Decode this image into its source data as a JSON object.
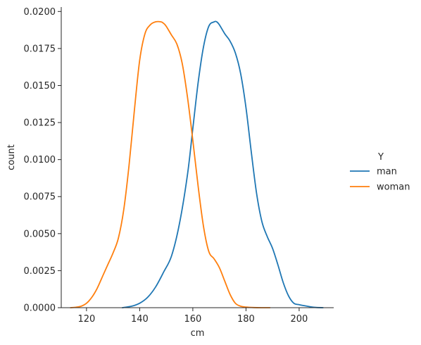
{
  "chart_data": {
    "type": "line",
    "title": "",
    "xlabel": "cm",
    "ylabel": "count",
    "xlim": [
      110.5,
      213
    ],
    "ylim": [
      0,
      0.0203
    ],
    "x_ticks": [
      120,
      140,
      160,
      180,
      200
    ],
    "x_tick_labels": [
      "120",
      "140",
      "160",
      "180",
      "200"
    ],
    "y_ticks": [
      0.0,
      0.0025,
      0.005,
      0.0075,
      0.01,
      0.0125,
      0.015,
      0.0175,
      0.02
    ],
    "y_tick_labels": [
      "0.0000",
      "0.0025",
      "0.0050",
      "0.0075",
      "0.0100",
      "0.0125",
      "0.0150",
      "0.0175",
      "0.0200"
    ],
    "grid": false,
    "legend": {
      "title": "Y",
      "placement": "outside-right"
    },
    "series": [
      {
        "name": "man",
        "color": "#1f77b4",
        "x": [
          133.5,
          137,
          140,
          143,
          146,
          149,
          152,
          155,
          158,
          160,
          162,
          164,
          166,
          168,
          169,
          170,
          172,
          174,
          176,
          178,
          180,
          182,
          184,
          186,
          188,
          190,
          192,
          194,
          196,
          198,
          200,
          203,
          206,
          209
        ],
        "y": [
          0.0,
          0.0001,
          0.0003,
          0.0007,
          0.0014,
          0.0024,
          0.0035,
          0.0057,
          0.009,
          0.0121,
          0.0152,
          0.0176,
          0.019,
          0.0193,
          0.0193,
          0.0191,
          0.0185,
          0.018,
          0.0172,
          0.0158,
          0.0135,
          0.0105,
          0.0077,
          0.0058,
          0.0048,
          0.004,
          0.0029,
          0.0017,
          0.0008,
          0.0003,
          0.0002,
          0.0001,
          2e-05,
          0.0
        ]
      },
      {
        "name": "woman",
        "color": "#ff7f0e",
        "x": [
          114,
          116,
          118,
          120,
          122,
          124,
          126,
          128,
          130,
          132,
          134,
          136,
          138,
          140,
          142,
          144,
          146,
          148,
          149,
          150,
          152,
          154,
          156,
          158,
          160,
          162,
          164,
          166,
          168,
          170,
          172,
          174,
          176,
          178,
          180,
          183,
          186,
          189
        ],
        "y": [
          0.0,
          3e-05,
          0.0001,
          0.0003,
          0.0007,
          0.0013,
          0.0021,
          0.0029,
          0.0037,
          0.0047,
          0.0066,
          0.0096,
          0.0133,
          0.0167,
          0.0185,
          0.0191,
          0.0193,
          0.0193,
          0.0192,
          0.019,
          0.0184,
          0.0178,
          0.0165,
          0.0142,
          0.0113,
          0.0082,
          0.0055,
          0.0038,
          0.0033,
          0.0027,
          0.0018,
          0.0009,
          0.0003,
          0.0001,
          4e-05,
          1e-05,
          0.0,
          0.0
        ]
      }
    ]
  }
}
